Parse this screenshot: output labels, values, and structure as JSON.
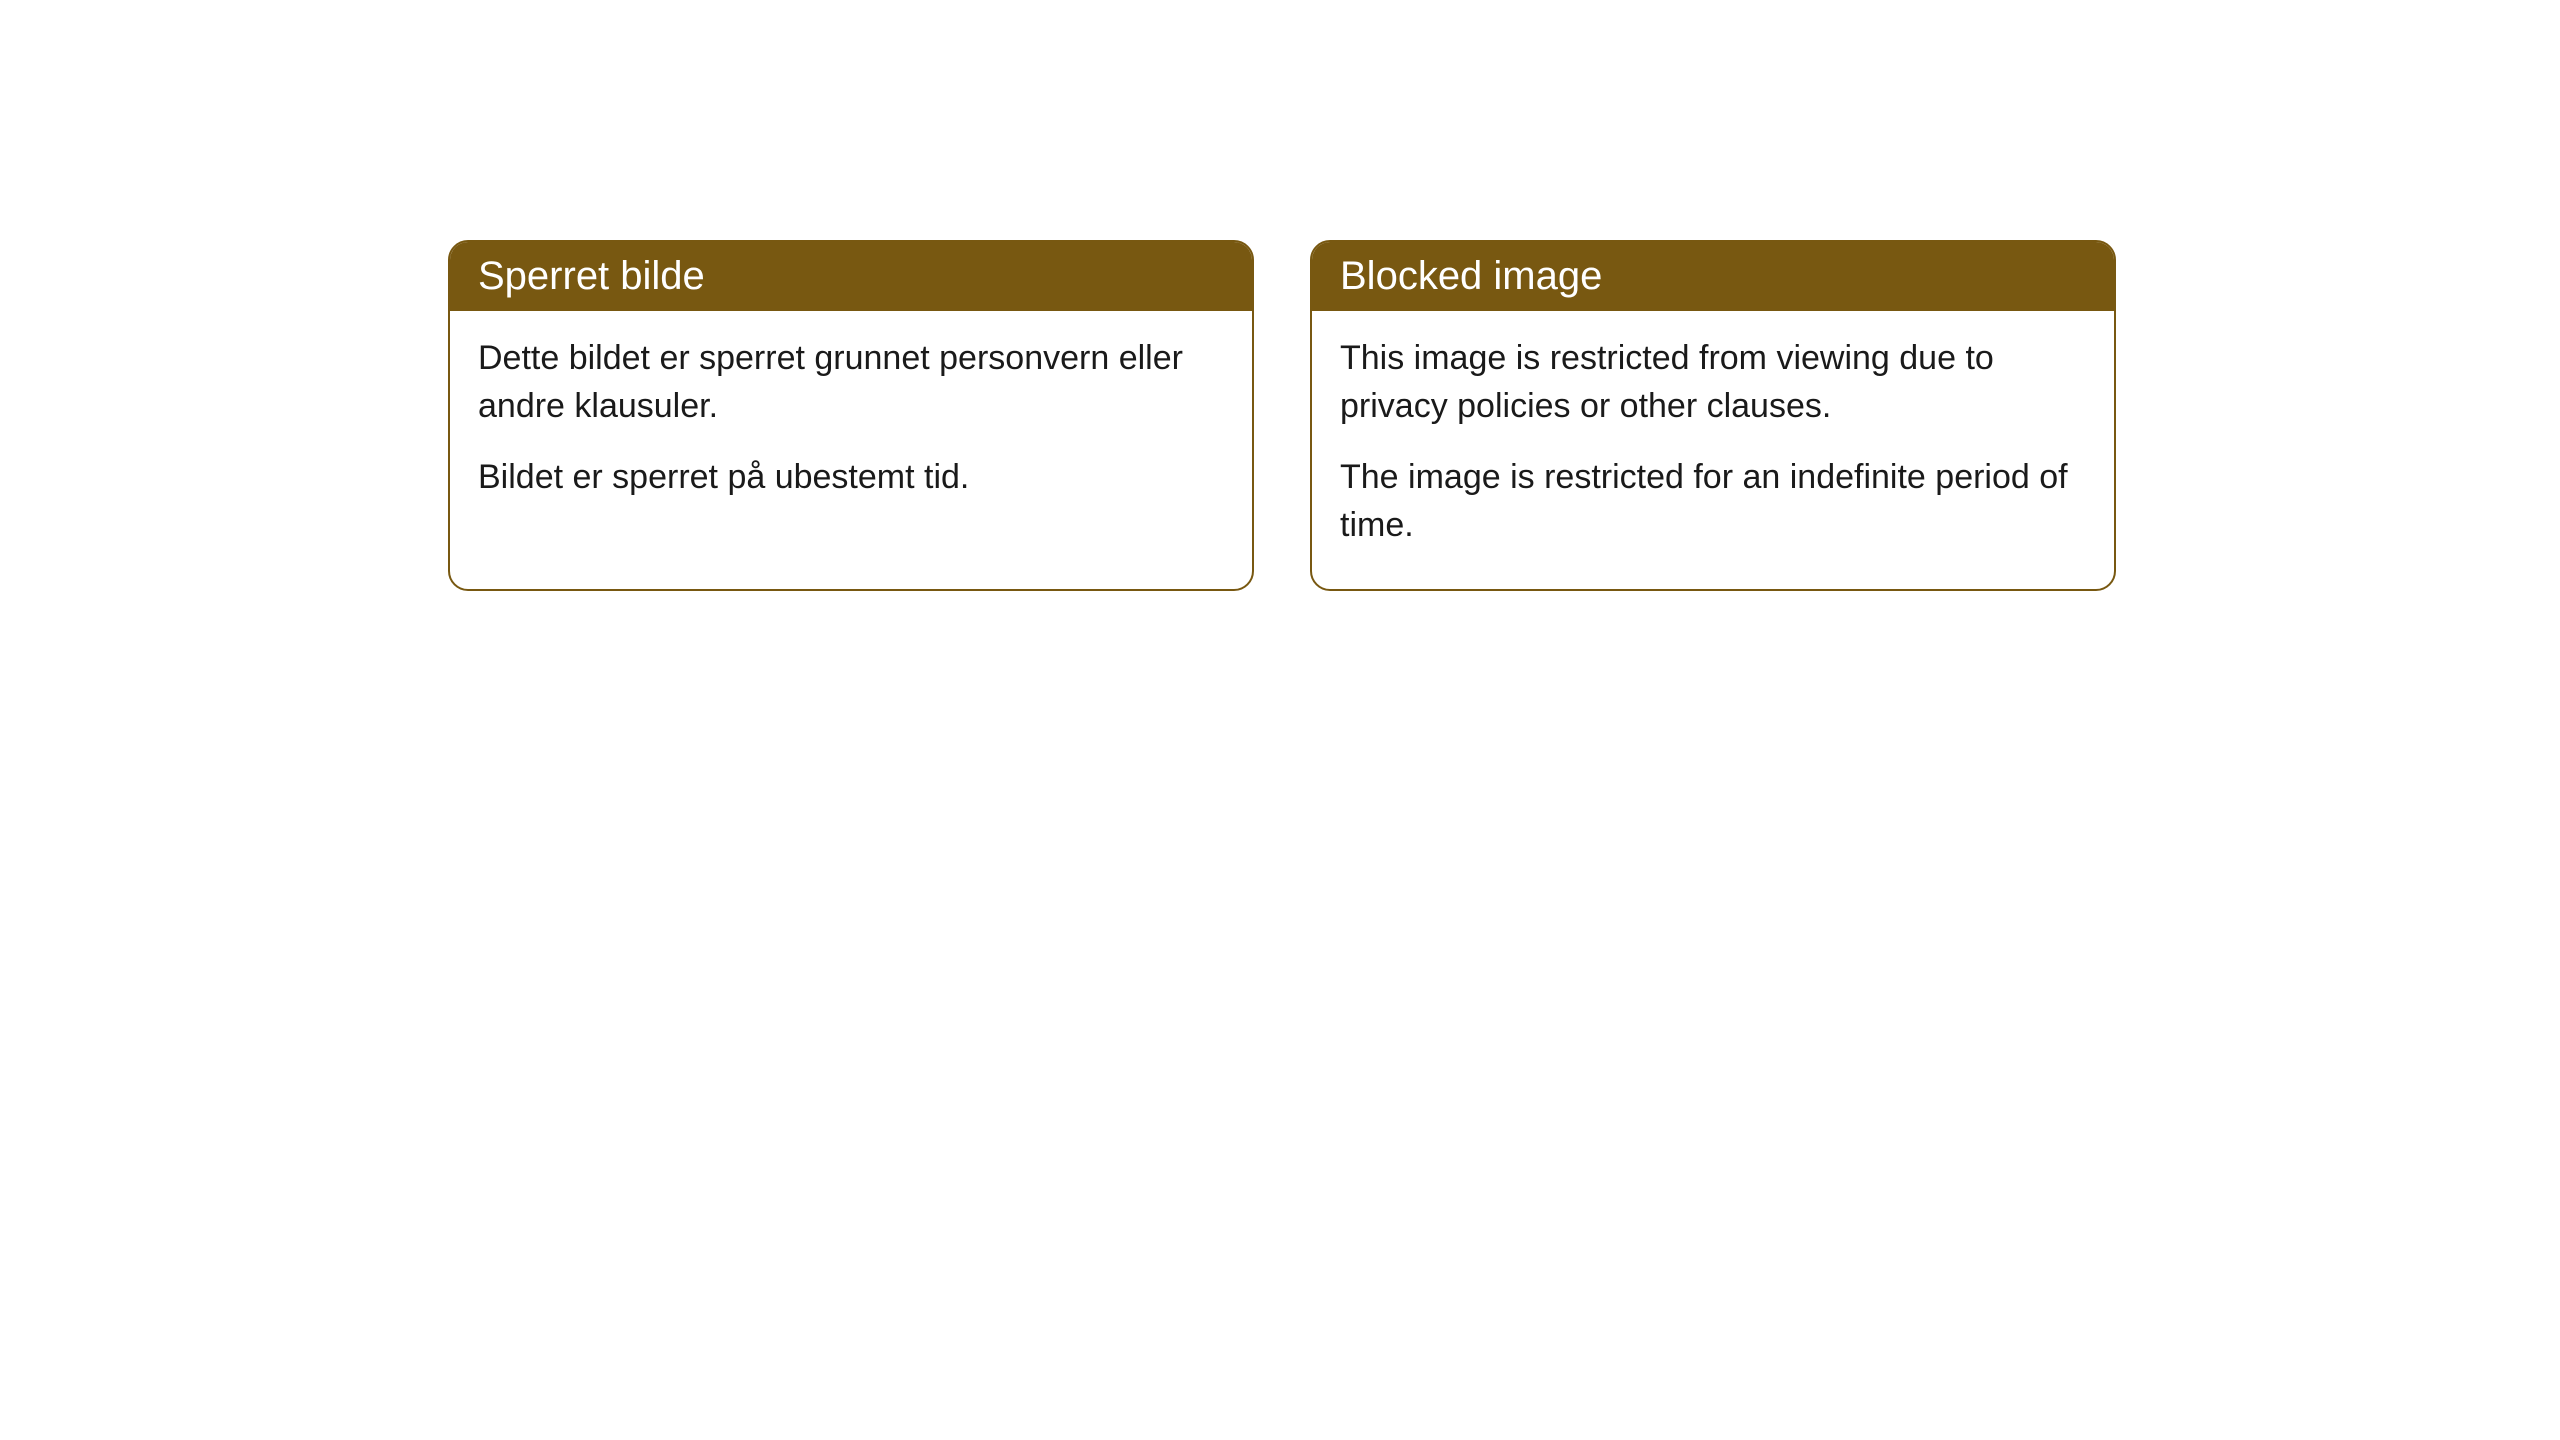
{
  "cards": [
    {
      "title": "Sperret bilde",
      "paragraph1": "Dette bildet er sperret grunnet personvern eller andre klausuler.",
      "paragraph2": "Bildet er sperret på ubestemt tid."
    },
    {
      "title": "Blocked image",
      "paragraph1": "This image is restricted from viewing due to privacy policies or other clauses.",
      "paragraph2": "The image is restricted for an indefinite period of time."
    }
  ],
  "styling": {
    "header_bg_color": "#785811",
    "header_text_color": "#ffffff",
    "border_color": "#785811",
    "body_bg_color": "#ffffff",
    "body_text_color": "#1a1a1a",
    "border_radius": 20,
    "header_fontsize": 40,
    "body_fontsize": 34
  }
}
